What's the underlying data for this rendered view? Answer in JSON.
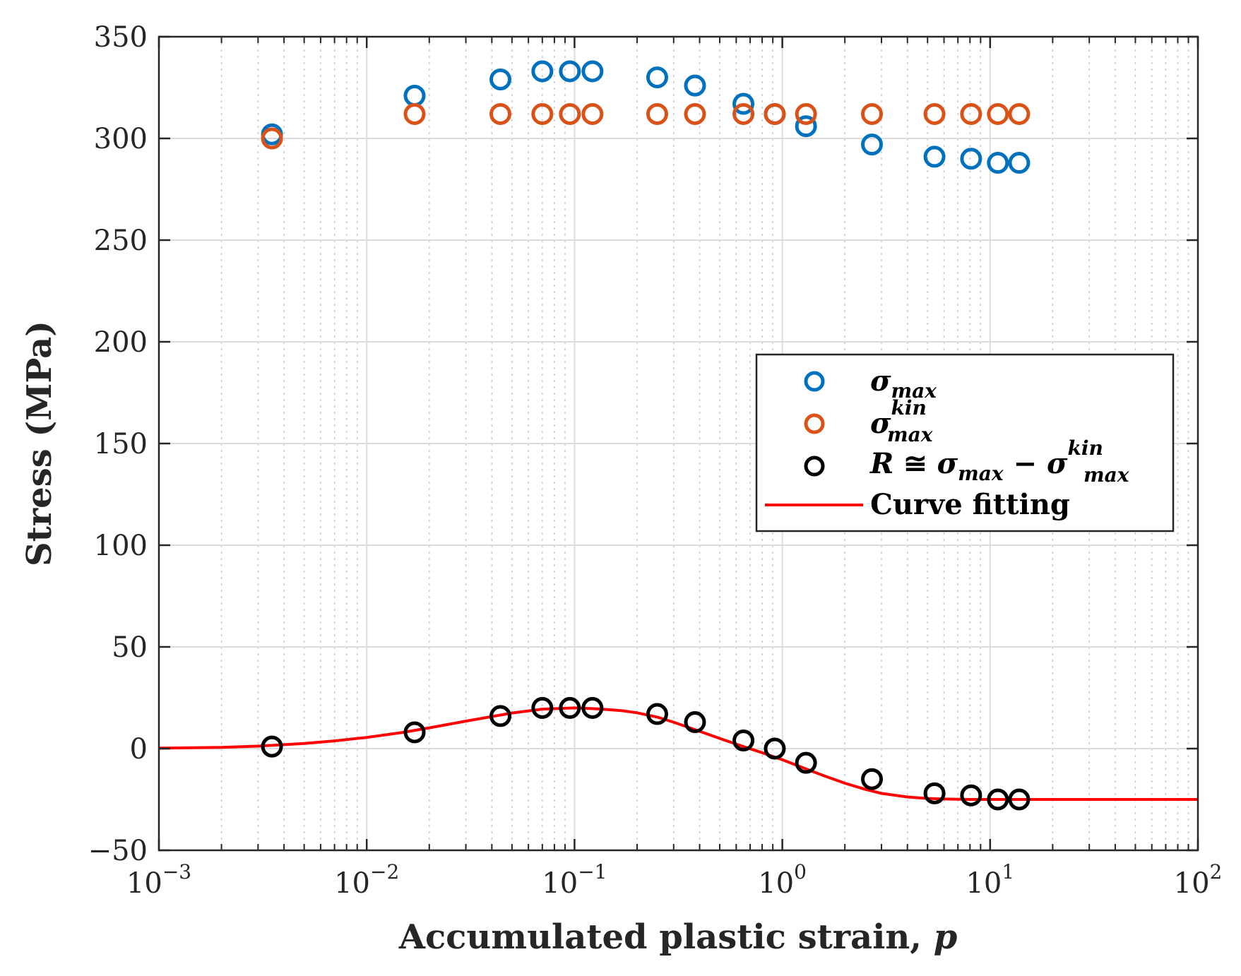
{
  "chart_data": {
    "type": "scatter",
    "title": "",
    "xlabel_text": "Accumulated plastic strain, ",
    "xlabel_var": "p",
    "ylabel": "Stress (MPa)",
    "xscale": "log",
    "xlim": [
      0.001,
      100
    ],
    "ylim": [
      -50,
      350
    ],
    "grid": true,
    "minor_grid": true,
    "legend_position": "center-right",
    "xticks": [
      {
        "value": 0.001,
        "base": "10",
        "exp": "−3"
      },
      {
        "value": 0.01,
        "base": "10",
        "exp": "−2"
      },
      {
        "value": 0.1,
        "base": "10",
        "exp": "−1"
      },
      {
        "value": 1,
        "base": "10",
        "exp": "0"
      },
      {
        "value": 10,
        "base": "10",
        "exp": "1"
      },
      {
        "value": 100,
        "base": "10",
        "exp": "2"
      }
    ],
    "yticks": [
      {
        "value": -50,
        "label": "−50"
      },
      {
        "value": 0,
        "label": "0"
      },
      {
        "value": 50,
        "label": "50"
      },
      {
        "value": 100,
        "label": "100"
      },
      {
        "value": 150,
        "label": "150"
      },
      {
        "value": 200,
        "label": "200"
      },
      {
        "value": 250,
        "label": "250"
      },
      {
        "value": 300,
        "label": "300"
      },
      {
        "value": 350,
        "label": "350"
      }
    ],
    "series": [
      {
        "name": "sigma_max",
        "legend_main": "σ",
        "legend_sub": "max",
        "legend_sup": "",
        "color": "#0072BD",
        "marker": "circle",
        "x": [
          0.0035,
          0.017,
          0.044,
          0.07,
          0.095,
          0.122,
          0.25,
          0.38,
          0.65,
          0.92,
          1.3,
          2.7,
          5.4,
          8.1,
          10.9,
          13.8
        ],
        "y": [
          302,
          321,
          329,
          333,
          333,
          333,
          330,
          326,
          317,
          312,
          306,
          297,
          291,
          290,
          288,
          288
        ]
      },
      {
        "name": "sigma_max_kin",
        "legend_main": "σ",
        "legend_sub": "max",
        "legend_sup": "kin",
        "color": "#D95319",
        "marker": "circle",
        "x": [
          0.0035,
          0.017,
          0.044,
          0.07,
          0.095,
          0.122,
          0.25,
          0.38,
          0.65,
          0.92,
          1.3,
          2.7,
          5.4,
          8.1,
          10.9,
          13.8
        ],
        "y": [
          300,
          312,
          312,
          312,
          312,
          312,
          312,
          312,
          312,
          312,
          312,
          312,
          312,
          312,
          312,
          312
        ]
      },
      {
        "name": "R",
        "legend_r": "R",
        "legend_approx": " ≅ ",
        "legend_main": "σ",
        "legend_sub": "max",
        "legend_minus": " − ",
        "legend_main2": "σ",
        "legend_sup2": "kin",
        "legend_sub2": "max",
        "color": "#000000",
        "marker": "circle",
        "x": [
          0.0035,
          0.017,
          0.044,
          0.07,
          0.095,
          0.122,
          0.25,
          0.38,
          0.65,
          0.92,
          1.3,
          2.7,
          5.4,
          8.1,
          10.9,
          13.8
        ],
        "y": [
          1,
          8,
          16,
          20,
          20,
          20,
          17,
          13,
          4,
          0,
          -7,
          -15,
          -22,
          -23,
          -25,
          -25
        ]
      },
      {
        "name": "Curve fitting",
        "color": "#FF0000",
        "marker": "line",
        "x": [
          0.001,
          0.002,
          0.003,
          0.005,
          0.007,
          0.01,
          0.015,
          0.02,
          0.03,
          0.05,
          0.07,
          0.1,
          0.13,
          0.17,
          0.2,
          0.25,
          0.3,
          0.4,
          0.5,
          0.65,
          0.8,
          1.0,
          1.3,
          1.6,
          2.0,
          2.5,
          3.0,
          4.0,
          5.0,
          6.0,
          8.0,
          10.0,
          15.0,
          20.0,
          50.0,
          100.0
        ],
        "y": [
          0.2,
          0.6,
          1.2,
          2.5,
          3.8,
          5.5,
          8.0,
          10.2,
          13.5,
          17.5,
          19.4,
          20.0,
          19.5,
          18.6,
          17.6,
          15.5,
          13.0,
          8.5,
          5.0,
          1.0,
          -2.0,
          -5.5,
          -10.0,
          -13.5,
          -17.0,
          -20.0,
          -22.0,
          -23.8,
          -24.5,
          -24.8,
          -25.0,
          -25.0,
          -25.0,
          -25.0,
          -25.0,
          -25.0
        ]
      }
    ],
    "legend_curve_label": "Curve fitting"
  }
}
